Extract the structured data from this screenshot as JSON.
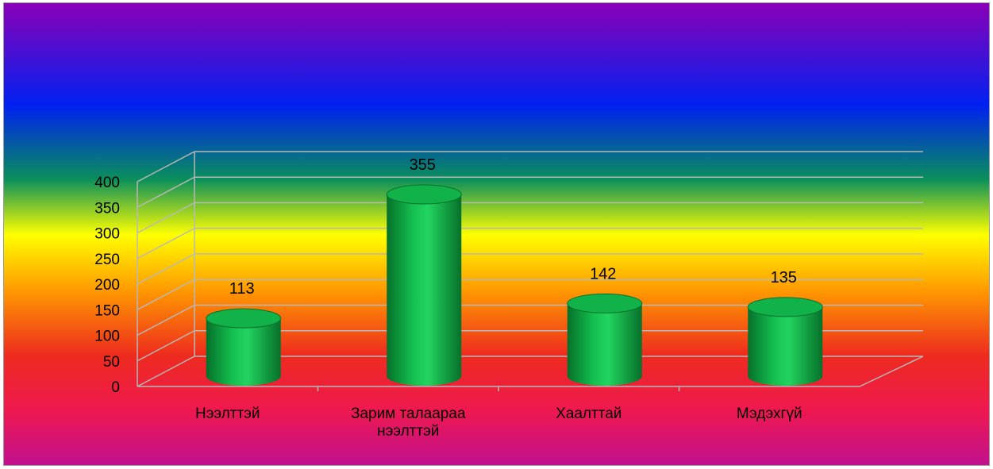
{
  "chart_data": {
    "type": "bar",
    "style": "3d-cylinder",
    "categories": [
      "Нээлттэй",
      "Зарим талаараа нээлттэй",
      "Хаалттай",
      "Мэдэхгүй"
    ],
    "values": [
      113,
      355,
      142,
      135
    ],
    "data_labels": [
      "113",
      "355",
      "142",
      "135"
    ],
    "ylim": [
      0,
      400
    ],
    "yticks": [
      0,
      50,
      100,
      150,
      200,
      250,
      300,
      350,
      400
    ],
    "ytick_labels": [
      "0",
      "50",
      "100",
      "150",
      "200",
      "250",
      "300",
      "350",
      "400"
    ],
    "grid": true,
    "legend": "none",
    "colors": {
      "bar": "#12b24a",
      "bar_dark": "#06702a",
      "bar_top": "#1fcf5e",
      "gridline": "#b8b8b8",
      "background_gradient": [
        "#8a00b8",
        "#0020f0",
        "#0a8f5c",
        "#ffff00",
        "#ff9900",
        "#ee2b1e",
        "#ee1850",
        "#c01090"
      ]
    }
  }
}
